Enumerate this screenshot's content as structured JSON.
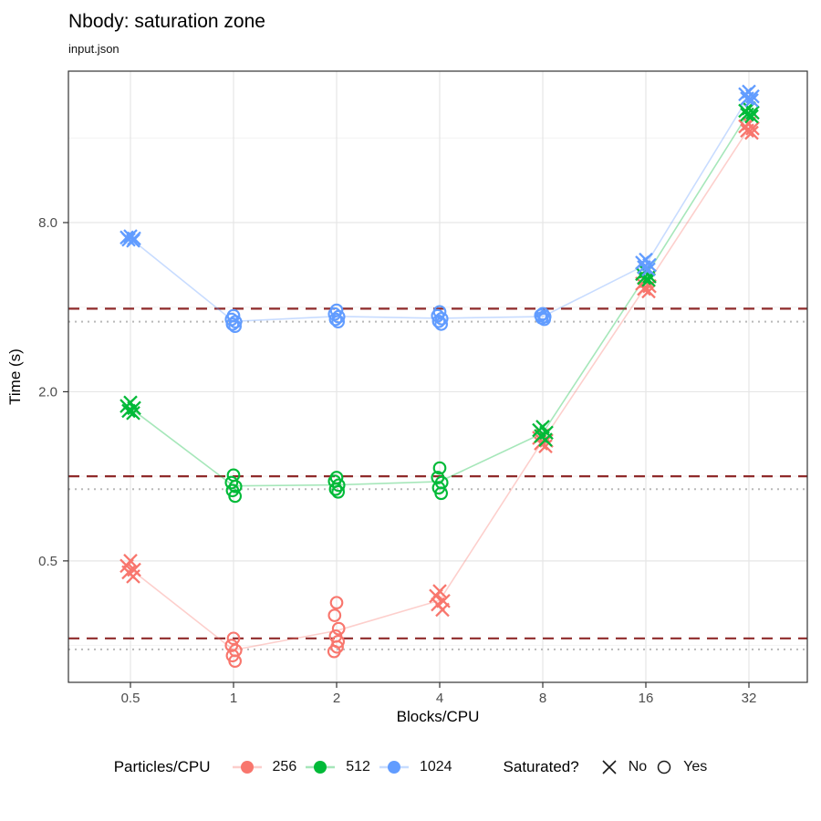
{
  "title": "Nbody: saturation zone",
  "subtitle": "input.json",
  "axes": {
    "x_label": "Blocks/CPU",
    "y_label": "Time (s)"
  },
  "legend": {
    "color_title": "Particles/CPU",
    "color_items": [
      {
        "label": "256",
        "color": "#F8766D"
      },
      {
        "label": "512",
        "color": "#00BA38"
      },
      {
        "label": "1024",
        "color": "#619CFF"
      }
    ],
    "shape_title": "Saturated?",
    "shape_items": [
      {
        "label": "No",
        "shape": "x"
      },
      {
        "label": "Yes",
        "shape": "circle"
      }
    ]
  },
  "chart_data": {
    "type": "scatter",
    "title": "Nbody: saturation zone",
    "subtitle": "input.json",
    "xlabel": "Blocks/CPU",
    "ylabel": "Time (s)",
    "x_scale": "log2",
    "y_scale": "log10",
    "x_ticks": [
      {
        "v": 0.5,
        "label": "0.5"
      },
      {
        "v": 1,
        "label": "1"
      },
      {
        "v": 2,
        "label": "2"
      },
      {
        "v": 4,
        "label": "4"
      },
      {
        "v": 8,
        "label": "8"
      },
      {
        "v": 16,
        "label": "16"
      },
      {
        "v": 32,
        "label": "32"
      }
    ],
    "y_ticks": [
      {
        "v": 0.5,
        "label": "0.5"
      },
      {
        "v": 2,
        "label": "2.0"
      },
      {
        "v": 8,
        "label": "8.0"
      }
    ],
    "y_minor": [
      0.25,
      1,
      4,
      16
    ],
    "grid": {
      "major_color": "#e6e6e6",
      "minor_color": "#f2f2f2",
      "border_color": "#343434"
    },
    "reference_lines": {
      "dashed_color": "#8f2a2a",
      "dotted_color": "#b9b9b9",
      "dashed_values": [
        3.95,
        1.0,
        0.265
      ],
      "dotted_values": [
        3.55,
        0.9,
        0.242
      ]
    },
    "shape_legend": {
      "x_means": "not saturated",
      "circle_means": "saturated"
    },
    "series": [
      {
        "name": "256",
        "color": "#F8766D",
        "groups": [
          {
            "x": 0.5,
            "saturated": false,
            "times": [
              0.5,
              0.48,
              0.465,
              0.455,
              0.44
            ]
          },
          {
            "x": 1,
            "saturated": true,
            "times": [
              0.265,
              0.25,
              0.24,
              0.23,
              0.22
            ]
          },
          {
            "x": 2,
            "saturated": true,
            "times": [
              0.355,
              0.32,
              0.287,
              0.27,
              0.258,
              0.247,
              0.238
            ]
          },
          {
            "x": 4,
            "saturated": false,
            "times": [
              0.39,
              0.375,
              0.36,
              0.35,
              0.335
            ]
          },
          {
            "x": 8,
            "saturated": false,
            "times": [
              1.4,
              1.37,
              1.34,
              1.31,
              1.28
            ]
          },
          {
            "x": 16,
            "saturated": false,
            "times": [
              4.95,
              4.85,
              4.75,
              4.65,
              4.55
            ]
          },
          {
            "x": 32,
            "saturated": false,
            "times": [
              18.0,
              17.6,
              17.3,
              17.0,
              16.7
            ]
          }
        ]
      },
      {
        "name": "512",
        "color": "#00BA38",
        "groups": [
          {
            "x": 0.5,
            "saturated": false,
            "times": [
              1.83,
              1.78,
              1.75,
              1.71,
              1.68
            ]
          },
          {
            "x": 1,
            "saturated": true,
            "times": [
              1.01,
              0.95,
              0.92,
              0.89,
              0.85
            ]
          },
          {
            "x": 2,
            "saturated": true,
            "times": [
              0.99,
              0.96,
              0.93,
              0.9,
              0.88
            ]
          },
          {
            "x": 4,
            "saturated": true,
            "times": [
              1.07,
              0.99,
              0.95,
              0.91,
              0.87
            ]
          },
          {
            "x": 8,
            "saturated": false,
            "times": [
              1.5,
              1.46,
              1.43,
              1.39,
              1.35
            ]
          },
          {
            "x": 16,
            "saturated": false,
            "times": [
              5.35,
              5.25,
              5.15,
              5.08,
              5.0
            ]
          },
          {
            "x": 32,
            "saturated": false,
            "times": [
              20.4,
              20.0,
              19.7,
              19.4,
              19.1
            ]
          }
        ]
      },
      {
        "name": "1024",
        "color": "#619CFF",
        "groups": [
          {
            "x": 0.5,
            "saturated": false,
            "times": [
              7.15,
              7.08,
              7.02,
              6.96,
              6.9
            ]
          },
          {
            "x": 1,
            "saturated": true,
            "times": [
              3.73,
              3.62,
              3.55,
              3.48,
              3.42
            ]
          },
          {
            "x": 2,
            "saturated": true,
            "times": [
              3.9,
              3.78,
              3.7,
              3.62,
              3.55
            ]
          },
          {
            "x": 4,
            "saturated": true,
            "times": [
              3.85,
              3.73,
              3.64,
              3.56,
              3.48
            ]
          },
          {
            "x": 8,
            "saturated": true,
            "times": [
              3.79,
              3.74,
              3.7,
              3.66,
              3.62
            ]
          },
          {
            "x": 16,
            "saturated": false,
            "times": [
              5.9,
              5.76,
              5.65,
              5.55,
              5.45
            ]
          },
          {
            "x": 32,
            "saturated": false,
            "times": [
              23.4,
              22.9,
              22.5,
              22.1,
              21.8
            ]
          }
        ]
      }
    ]
  }
}
